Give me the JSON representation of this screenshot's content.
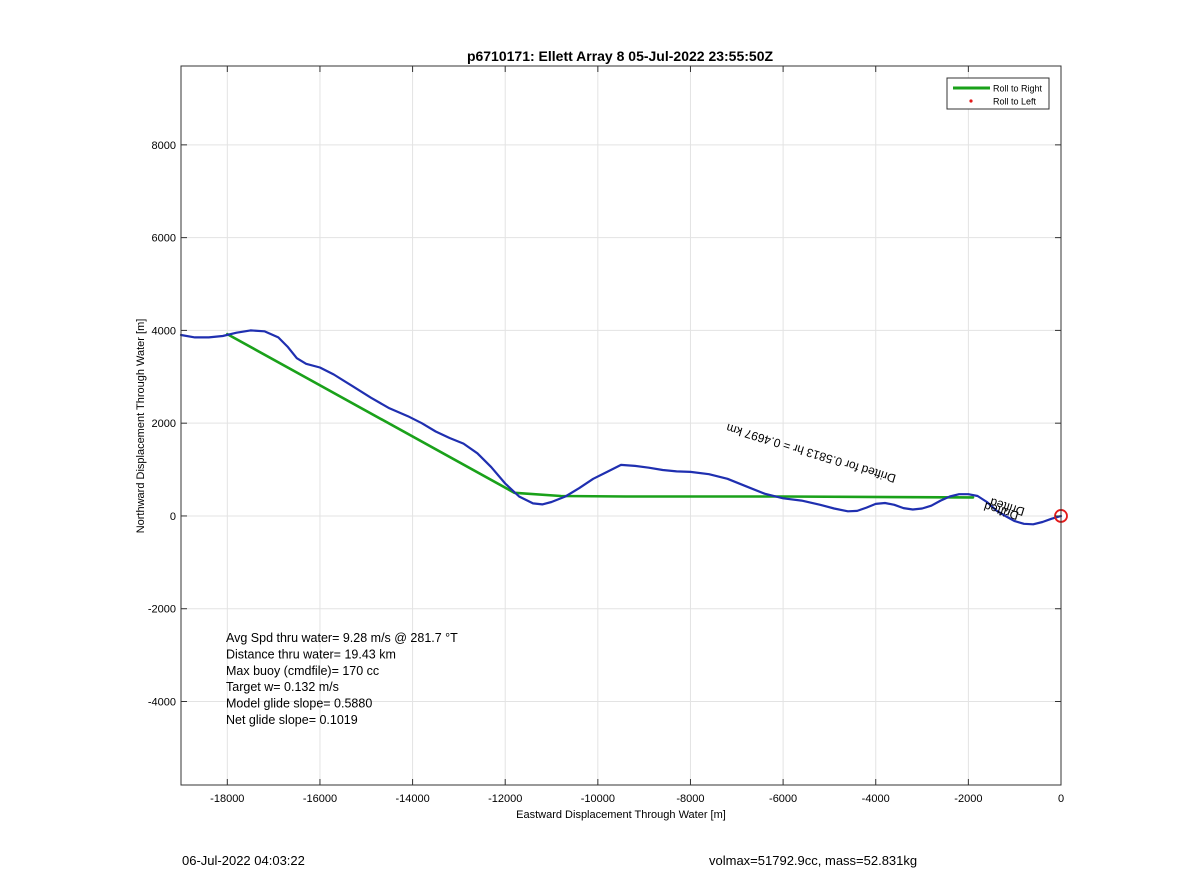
{
  "footer": {
    "left": "06-Jul-2022 04:03:22",
    "right": "volmax=51792.9cc, mass=52.831kg"
  },
  "chart_data": {
    "type": "line",
    "title": "p6710171: Ellett Array 8 05-Jul-2022 23:55:50Z",
    "xlabel": "Eastward Displacement Through Water [m]",
    "ylabel": "Northward Displacement Through Water [m]",
    "xlim": [
      -19000,
      0
    ],
    "ylim": [
      -5800,
      9700
    ],
    "x_ticks": [
      -18000,
      -16000,
      -14000,
      -12000,
      -10000,
      -8000,
      -6000,
      -4000,
      -2000,
      0
    ],
    "y_ticks": [
      -4000,
      -2000,
      0,
      2000,
      4000,
      6000,
      8000
    ],
    "x_tick_labels": [
      "-18000",
      "-16000",
      "-14000",
      "-12000",
      "-10000",
      "-8000",
      "-6000",
      "-4000",
      "-2000",
      "0"
    ],
    "y_tick_labels": [
      "-4000",
      "-2000",
      "0",
      "2000",
      "4000",
      "6000",
      "8000"
    ],
    "grid": true,
    "legend_position": "top-right",
    "legend": [
      {
        "label": "Roll to Right",
        "color": "#1aa11a",
        "style": "line"
      },
      {
        "label": "Roll to Left",
        "color": "#e31a1a",
        "style": "dot"
      }
    ],
    "series": [
      {
        "color": "#1f2fb0",
        "x": [
          -19000,
          -18700,
          -18400,
          -18100,
          -17800,
          -17500,
          -17200,
          -16900,
          -16700,
          -16500,
          -16300,
          -16000,
          -15700,
          -15300,
          -14900,
          -14500,
          -14100,
          -13800,
          -13500,
          -13200,
          -12900,
          -12600,
          -12300,
          -12000,
          -11700,
          -11400,
          -11200,
          -11000,
          -10700,
          -10400,
          -10100,
          -9800,
          -9500,
          -9200,
          -8900,
          -8600,
          -8300,
          -8000,
          -7600,
          -7200,
          -6800,
          -6400,
          -6000,
          -5600,
          -5200,
          -4900,
          -4600,
          -4400,
          -4200,
          -4000,
          -3800,
          -3600,
          -3400,
          -3200,
          -3000,
          -2800,
          -2600,
          -2400,
          -2200,
          -2000,
          -1800,
          -1600,
          -1400,
          -1200,
          -1000,
          -800,
          -600,
          -400,
          -200,
          0
        ],
        "y": [
          3900,
          3850,
          3850,
          3880,
          3950,
          4000,
          3980,
          3850,
          3650,
          3400,
          3280,
          3200,
          3050,
          2800,
          2550,
          2320,
          2150,
          2000,
          1820,
          1680,
          1560,
          1350,
          1050,
          700,
          420,
          270,
          250,
          300,
          420,
          600,
          800,
          950,
          1100,
          1080,
          1040,
          990,
          960,
          950,
          900,
          800,
          640,
          480,
          380,
          330,
          240,
          160,
          100,
          110,
          180,
          260,
          280,
          240,
          170,
          140,
          160,
          220,
          330,
          420,
          470,
          470,
          430,
          300,
          120,
          0,
          -110,
          -170,
          -180,
          -130,
          -60,
          0
        ]
      },
      {
        "name": "Roll to Right",
        "color": "#1aa11a",
        "x": [
          -18000,
          -11800,
          -10800,
          -9400,
          -6000,
          -2000,
          -1900
        ],
        "y": [
          3920,
          500,
          430,
          420,
          420,
          400,
          400
        ]
      }
    ],
    "markers": [
      {
        "x": 0,
        "y": 0,
        "shape": "circle",
        "color": "#e31a1a"
      }
    ],
    "annotations": [
      {
        "text": "Avg Spd thru water=  9.28 m/s @ 281.7 °T"
      },
      {
        "text": "Distance thru water= 19.43 km"
      },
      {
        "text": "Max buoy (cmdfile)= 170 cc"
      },
      {
        "text": "Target w= 0.132 m/s"
      },
      {
        "text": "Model glide slope= 0.5880"
      },
      {
        "text": "Net glide slope= 0.1019"
      }
    ],
    "rotated_label": {
      "text": "Drifted for 0.5813 hr = 0.4697 km",
      "x": -3550,
      "y": 880
    },
    "overlap_labels": [
      "Drifted",
      "Drifted"
    ]
  }
}
